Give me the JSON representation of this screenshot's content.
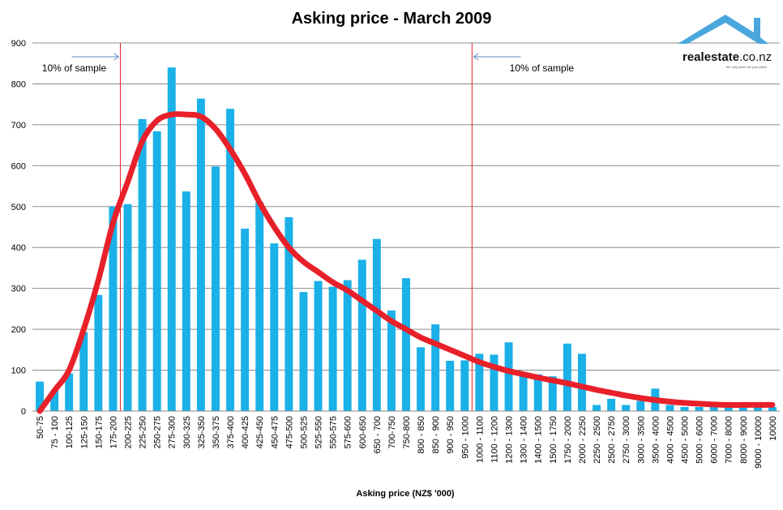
{
  "chart_data": {
    "type": "bar",
    "title": "Asking price - March 2009",
    "xlabel": "Asking price (NZ$ '000)",
    "ylabel": "",
    "ylim": [
      0,
      900
    ],
    "yticks": [
      0,
      100,
      200,
      300,
      400,
      500,
      600,
      700,
      800,
      900
    ],
    "grid": true,
    "bar_color": "#1ab0e8",
    "trend_color": "#e8202a",
    "marker_color": "#e8202a",
    "categories": [
      "50-75",
      "75 - 100",
      "100-125",
      "125-150",
      "150-175",
      "175-200",
      "200-225",
      "225-250",
      "250-275",
      "275-300",
      "300-325",
      "325-350",
      "350-375",
      "375-400",
      "400-425",
      "425-450",
      "450-475",
      "475-500",
      "500-525",
      "525-550",
      "550-575",
      "575-600",
      "600-650",
      "650 - 700",
      "700-750",
      "750-800",
      "800 - 850",
      "850 - 900",
      "900 - 950",
      "950 - 1000",
      "1000 - 1100",
      "1100 - 1200",
      "1200 - 1300",
      "1300 - 1400",
      "1400 - 1500",
      "1500 - 1750",
      "1750 - 2000",
      "2000 - 2250",
      "2250 - 2500",
      "2500 - 2750",
      "2750 - 3000",
      "3000 - 3500",
      "3500 - 4000",
      "4000 - 4500",
      "4500 - 5000",
      "5000 - 6000",
      "6000 - 7000",
      "7000 - 8000",
      "8000 - 9000",
      "9000 - 10000",
      "10000"
    ],
    "values": [
      72,
      50,
      92,
      193,
      284,
      500,
      506,
      714,
      684,
      840,
      537,
      764,
      598,
      739,
      446,
      511,
      410,
      474,
      291,
      318,
      304,
      320,
      370,
      421,
      246,
      325,
      156,
      212,
      123,
      124,
      140,
      138,
      168,
      88,
      90,
      85,
      165,
      140,
      15,
      30,
      15,
      25,
      55,
      15,
      10,
      10,
      10,
      10,
      10,
      10,
      10
    ],
    "trend": [
      0,
      50,
      100,
      200,
      320,
      460,
      560,
      660,
      710,
      725,
      725,
      720,
      690,
      640,
      580,
      510,
      450,
      400,
      365,
      340,
      315,
      295,
      270,
      245,
      220,
      200,
      180,
      165,
      150,
      135,
      120,
      108,
      98,
      90,
      82,
      75,
      68,
      60,
      52,
      45,
      38,
      32,
      27,
      23,
      20,
      18,
      16,
      15,
      15,
      15,
      15
    ],
    "markers": [
      {
        "after_category": "175-200",
        "label": "10% of sample",
        "side": "left"
      },
      {
        "after_category": "950 - 1000",
        "label": "10% of sample",
        "side": "right"
      }
    ]
  },
  "logo": {
    "brand_main": "realestate",
    "brand_suffix": ".co.nz",
    "tagline": "the only place for your place",
    "color": "#4aa7dc"
  }
}
